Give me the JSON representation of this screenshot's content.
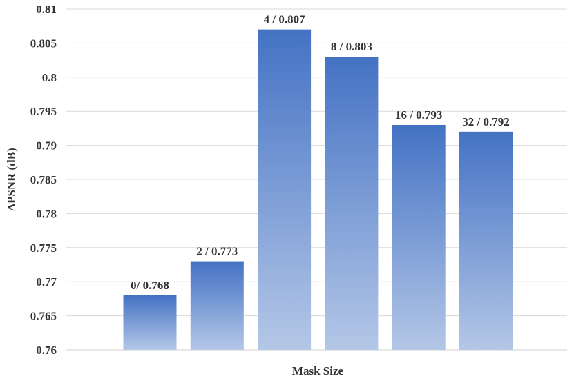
{
  "chart_data": {
    "type": "bar",
    "title": "",
    "xlabel": "Mask Size",
    "ylabel": "ΔPSNR (dB)",
    "ylim": [
      0.76,
      0.81
    ],
    "yticks": [
      "0.76",
      "0.765",
      "0.77",
      "0.775",
      "0.78",
      "0.785",
      "0.79",
      "0.795",
      "0.8",
      "0.805",
      "0.81"
    ],
    "grid": true,
    "categories": [
      "0",
      "2",
      "4",
      "8",
      "16",
      "32"
    ],
    "values": [
      0.768,
      0.773,
      0.807,
      0.803,
      0.793,
      0.792
    ],
    "data_labels": [
      "0/ 0.768",
      "2 / 0.773",
      "4 / 0.807",
      "8 / 0.803",
      "16 / 0.793",
      "32 / 0.792"
    ],
    "colors": {
      "bar_top": "#4472c4",
      "bar_bottom": "#b4c7e7",
      "grid": "#d9d9d9",
      "text": "#333333"
    }
  }
}
